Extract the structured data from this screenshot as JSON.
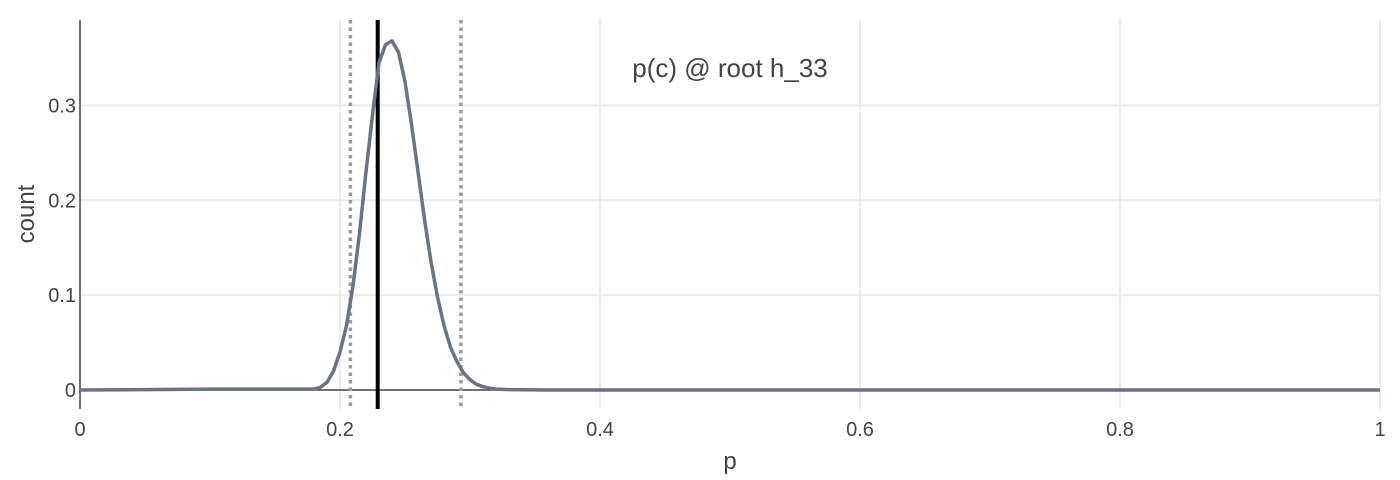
{
  "chart_data": {
    "type": "line",
    "annotation": "p(c) @ root h_33",
    "xlabel": "p",
    "ylabel": "count",
    "xlim": [
      0,
      1
    ],
    "ylim": [
      -0.02,
      0.39
    ],
    "x_ticks": [
      0,
      0.2,
      0.4,
      0.6,
      0.8,
      1
    ],
    "x_tick_labels": [
      "0",
      "0.2",
      "0.4",
      "0.6",
      "0.8",
      "1"
    ],
    "y_ticks": [
      0,
      0.1,
      0.2,
      0.3
    ],
    "y_tick_labels": [
      "0",
      "0.1",
      "0.2",
      "0.3"
    ],
    "grid": true,
    "series": [
      {
        "color": "#6b7280",
        "x": [
          0,
          0.05,
          0.1,
          0.15,
          0.18,
          0.185,
          0.19,
          0.195,
          0.2,
          0.205,
          0.21,
          0.215,
          0.22,
          0.225,
          0.23,
          0.235,
          0.24,
          0.245,
          0.25,
          0.255,
          0.26,
          0.265,
          0.27,
          0.275,
          0.28,
          0.285,
          0.29,
          0.295,
          0.3,
          0.305,
          0.31,
          0.315,
          0.32,
          0.33,
          0.34,
          0.36,
          0.4,
          0.6,
          0.8,
          1
        ],
        "y": [
          0,
          0.0005,
          0.001,
          0.001,
          0.001,
          0.003,
          0.008,
          0.02,
          0.04,
          0.068,
          0.11,
          0.165,
          0.23,
          0.29,
          0.345,
          0.364,
          0.368,
          0.356,
          0.325,
          0.28,
          0.23,
          0.18,
          0.135,
          0.098,
          0.068,
          0.045,
          0.03,
          0.018,
          0.011,
          0.006,
          0.0035,
          0.002,
          0.001,
          0.0005,
          0.0003,
          0,
          0,
          0,
          0,
          0
        ]
      }
    ],
    "vertical_lines": [
      {
        "x": 0.229,
        "style": "solid",
        "color": "#000000"
      },
      {
        "x": 0.208,
        "style": "dotted",
        "color": "#9a9aa3"
      },
      {
        "x": 0.293,
        "style": "dotted",
        "color": "#9a9aa3"
      }
    ]
  }
}
